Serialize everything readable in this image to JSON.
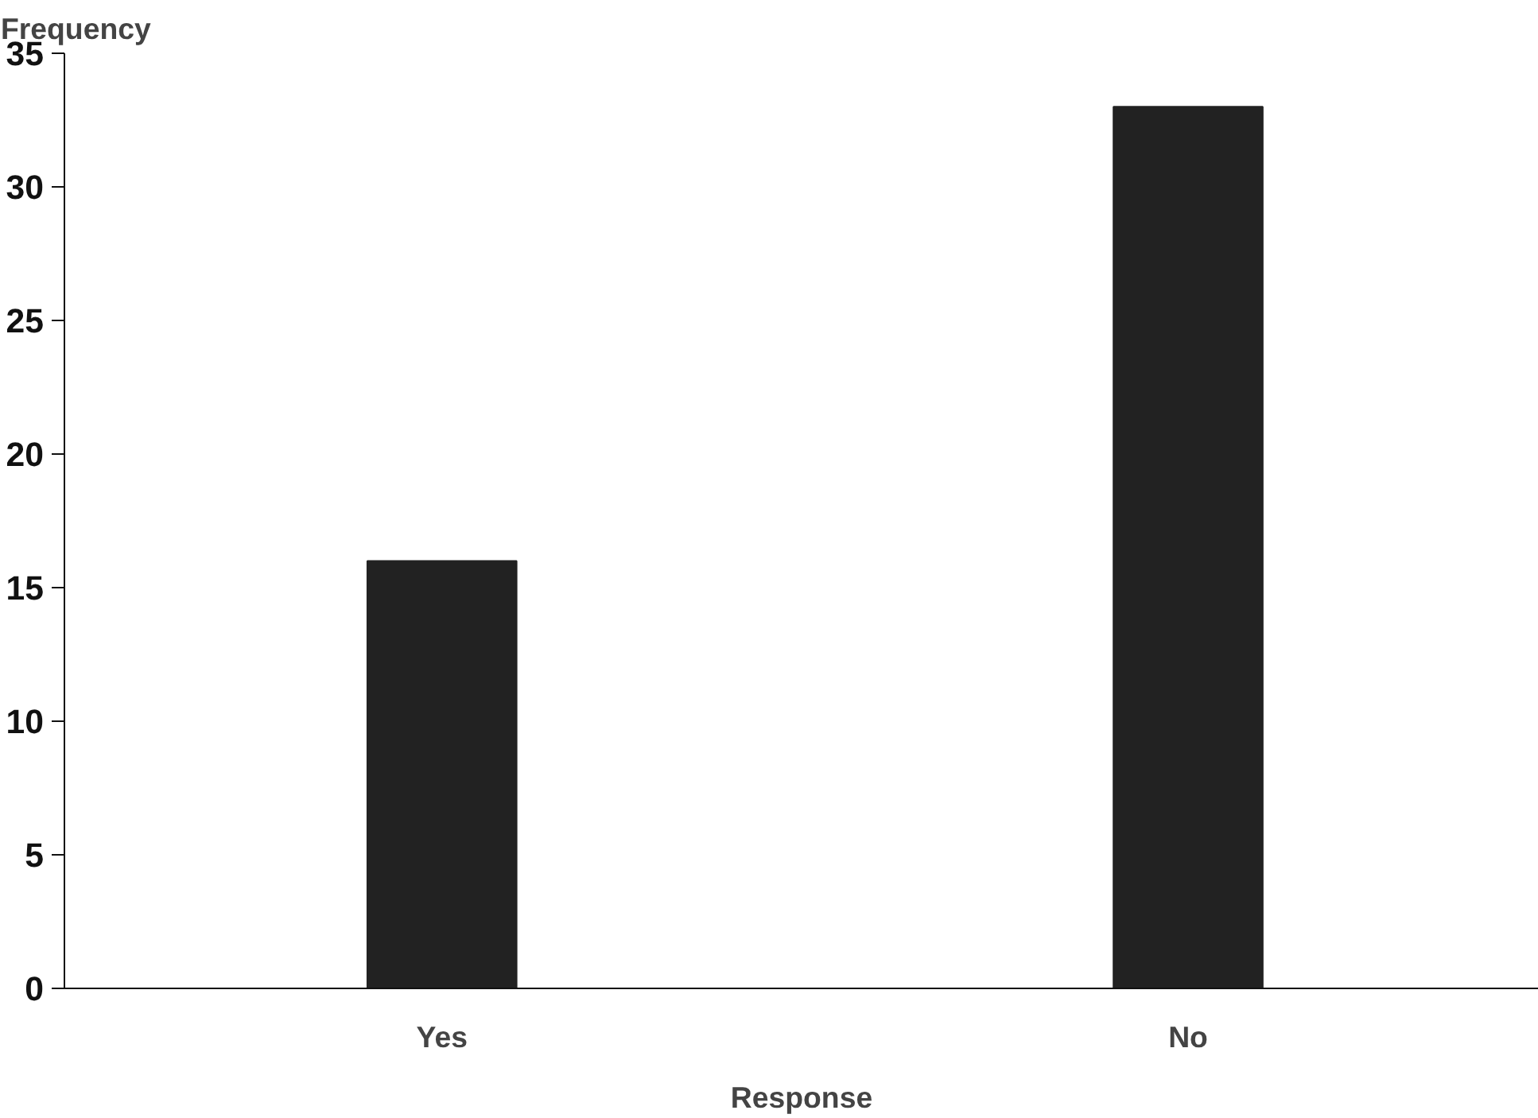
{
  "chart_data": {
    "type": "bar",
    "categories": [
      "Yes",
      "No"
    ],
    "values": [
      16,
      33
    ],
    "color": "#222222",
    "xlabel": "Response",
    "ylabel": "Frequency",
    "ylim": [
      0,
      35
    ],
    "yticks": [
      0,
      5,
      10,
      15,
      20,
      25,
      30,
      35
    ],
    "grid": false
  }
}
